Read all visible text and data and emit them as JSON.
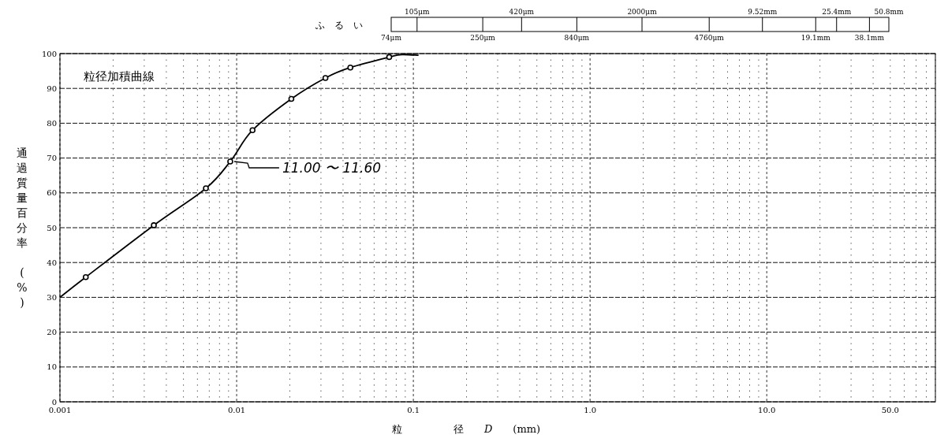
{
  "chart_data": {
    "type": "line",
    "title": "粒径加積曲線",
    "xlabel": "粒　　　　　径　　*D*　　(mm)",
    "ylabel": "通過質量百分率　　(%)",
    "log": "x",
    "xlim": [
      0.001,
      90
    ],
    "xticks": [
      0.001,
      0.01,
      0.1,
      {
        "value": 1,
        "label": "1.0"
      },
      {
        "value": 10,
        "label": "10.0"
      },
      {
        "value": 50,
        "label": "50.0"
      }
    ],
    "ylim": [
      0,
      100
    ],
    "yticks": [
      0,
      10,
      20,
      30,
      40,
      50,
      60,
      70,
      80,
      90,
      100
    ],
    "grid": true,
    "series": [
      {
        "color": "#000000",
        "marker": "none",
        "x": [
          0.001,
          0.0014,
          0.0034,
          0.0067,
          0.0092,
          0.0123,
          0.0204,
          0.0318,
          0.044,
          0.073,
          0.086,
          0.107
        ],
        "values": [
          30,
          35.8,
          50.7,
          61.3,
          69,
          78,
          87,
          93,
          96,
          99,
          99.7,
          99.5
        ]
      },
      {
        "type": "scatter",
        "color": "#000000",
        "marker": "circle",
        "x": [
          0.0014,
          0.0034,
          0.0067,
          0.0092,
          0.0123,
          0.0204,
          0.0318,
          0.044,
          0.073
        ],
        "values": [
          35.8,
          50.7,
          61.3,
          69,
          78,
          87,
          93,
          96,
          99
        ]
      }
    ],
    "annotations": [
      {
        "text": "11.00 〜 11.60",
        "x": 0.0092,
        "y": 69
      },
      "ふ　る　い",
      "74μm",
      "105μm",
      "250μm",
      "420μm",
      "840μm",
      "2000μm",
      "4760μm",
      "9.52mm",
      "19.1mm",
      "25.4mm",
      "38.1mm",
      "50.8mm"
    ]
  }
}
